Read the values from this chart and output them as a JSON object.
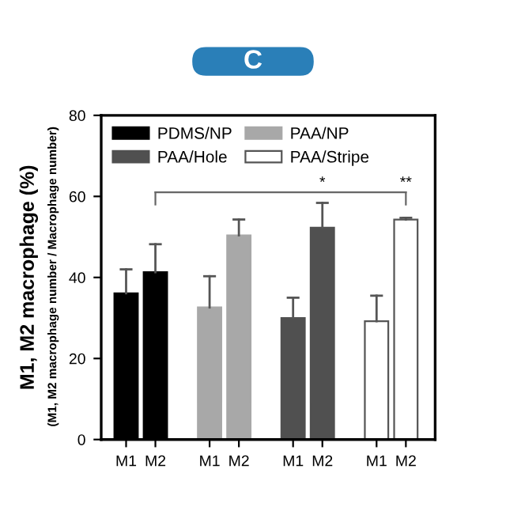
{
  "chart_data": {
    "type": "bar",
    "categories": [
      "M1",
      "M2",
      "M1",
      "M2",
      "M1",
      "M2",
      "M1",
      "M2"
    ],
    "series": [
      {
        "name": "PDMS/NP",
        "color": "#000000",
        "values": [
          36.1,
          41.3,
          null,
          null,
          null,
          null,
          null,
          null
        ],
        "errors": [
          [
            36.1,
            42
          ],
          [
            41.3,
            48.2
          ],
          null,
          null,
          null,
          null,
          null,
          null
        ]
      },
      {
        "name": "PAA/NP",
        "color": "#a8a8a8",
        "values": [
          null,
          null,
          32.6,
          50.4,
          null,
          null,
          null,
          null
        ],
        "errors": [
          null,
          null,
          [
            32.6,
            40.3
          ],
          [
            50.4,
            54.3
          ],
          null,
          null,
          null,
          null
        ]
      },
      {
        "name": "PAA/Hole",
        "color": "#505050",
        "values": [
          null,
          null,
          null,
          null,
          30,
          52.3,
          null,
          null
        ],
        "errors": [
          null,
          null,
          null,
          null,
          [
            30,
            35
          ],
          [
            52.3,
            58.4
          ],
          null,
          null
        ]
      },
      {
        "name": "PAA/Stripe",
        "color": "#ffffff",
        "values": [
          null,
          null,
          null,
          null,
          null,
          null,
          29.2,
          54.3
        ],
        "errors": [
          null,
          null,
          null,
          null,
          null,
          null,
          [
            29.2,
            35.5
          ],
          [
            54.3,
            54.7
          ]
        ]
      }
    ],
    "ylabel": "M1, M2 macrophage (%)",
    "annotations": [
      "C",
      "(M1, M2 macrophage number / Macrophage number)",
      "*",
      "**"
    ],
    "ylim": [
      0,
      80
    ],
    "yticks": [
      0,
      20,
      40,
      60,
      80
    ],
    "legend": "top left",
    "grid": false
  }
}
